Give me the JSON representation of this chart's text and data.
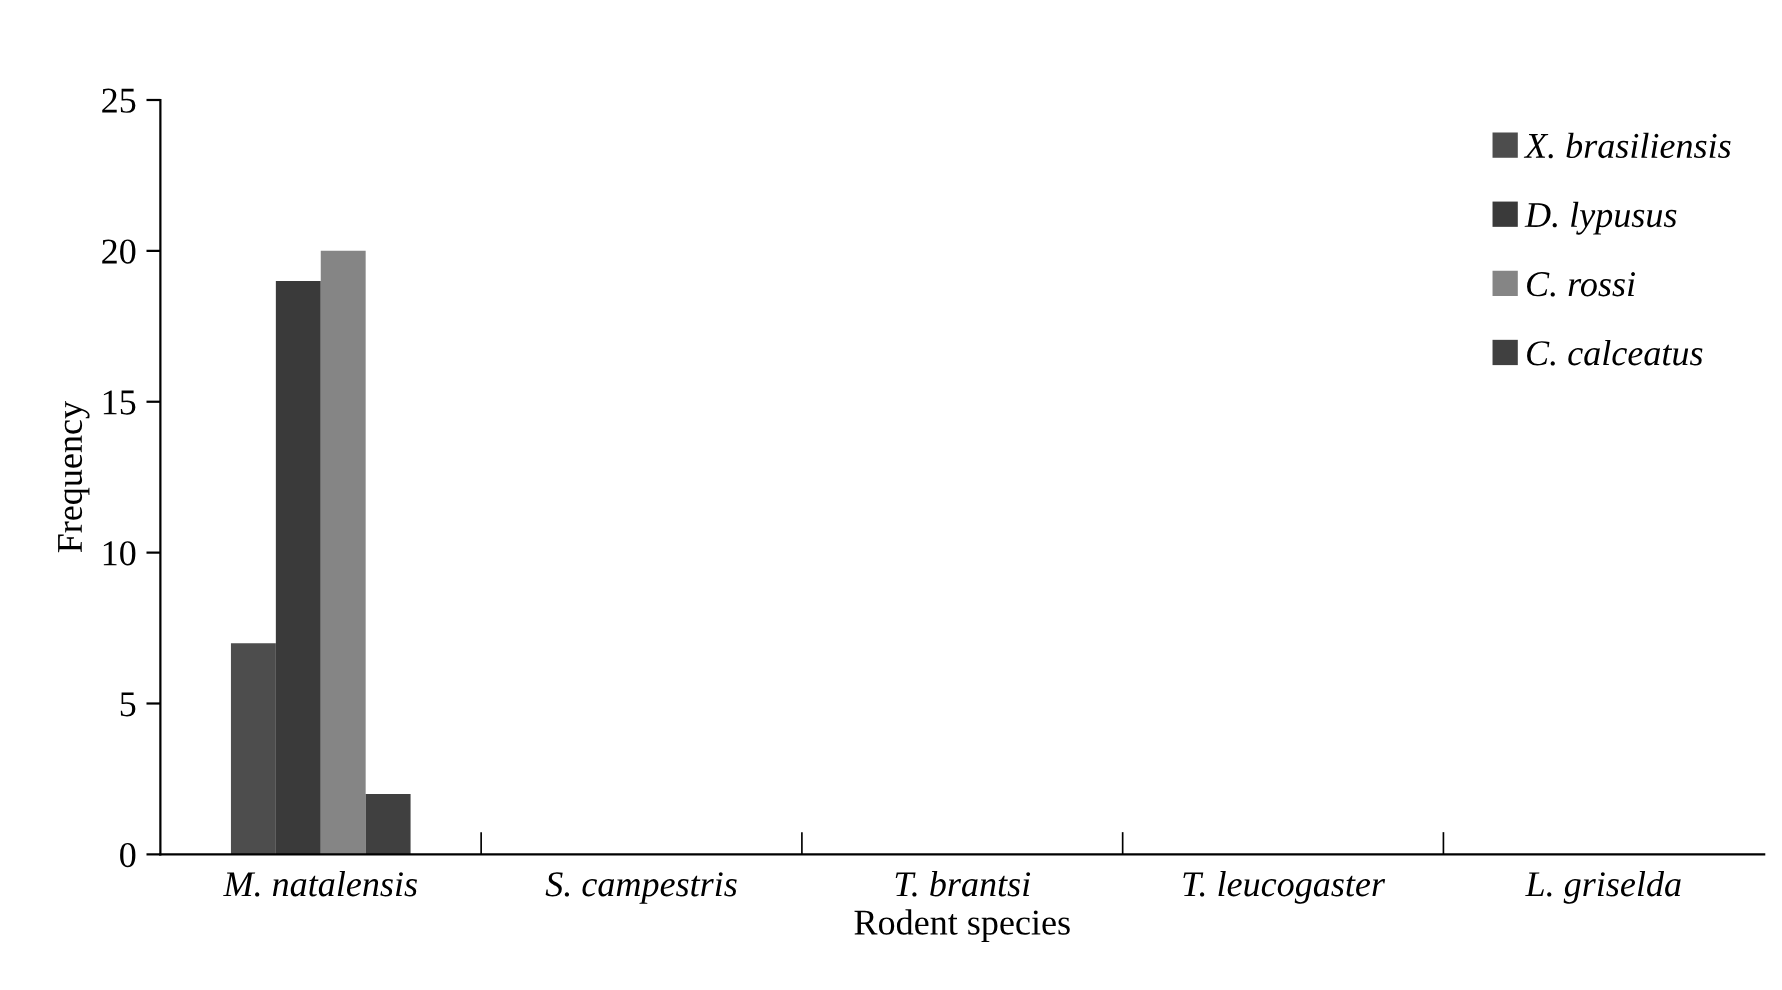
{
  "chart_data": {
    "type": "bar",
    "xlabel": "Rodent species",
    "ylabel": "Frequency",
    "categories": [
      "M. natalensis",
      "S. campestris",
      "T. brantsi",
      "T. leucogaster",
      "L. griselda"
    ],
    "series": [
      {
        "name": "X. brasiliensis",
        "color": "#4d4d4d",
        "values": [
          7,
          0,
          0,
          0,
          0
        ]
      },
      {
        "name": "D. lypusus",
        "color": "#3a3a3a",
        "values": [
          19,
          0,
          0,
          0,
          0
        ]
      },
      {
        "name": "C. rossi",
        "color": "#858585",
        "values": [
          20,
          0,
          0,
          0,
          0
        ]
      },
      {
        "name": "C. calceatus",
        "color": "#404040",
        "values": [
          2,
          0,
          0,
          0,
          0
        ]
      }
    ],
    "ylim": [
      0,
      25
    ],
    "yticks": [
      0,
      5,
      10,
      15,
      20,
      25
    ],
    "grid": false,
    "legend": "top right"
  }
}
